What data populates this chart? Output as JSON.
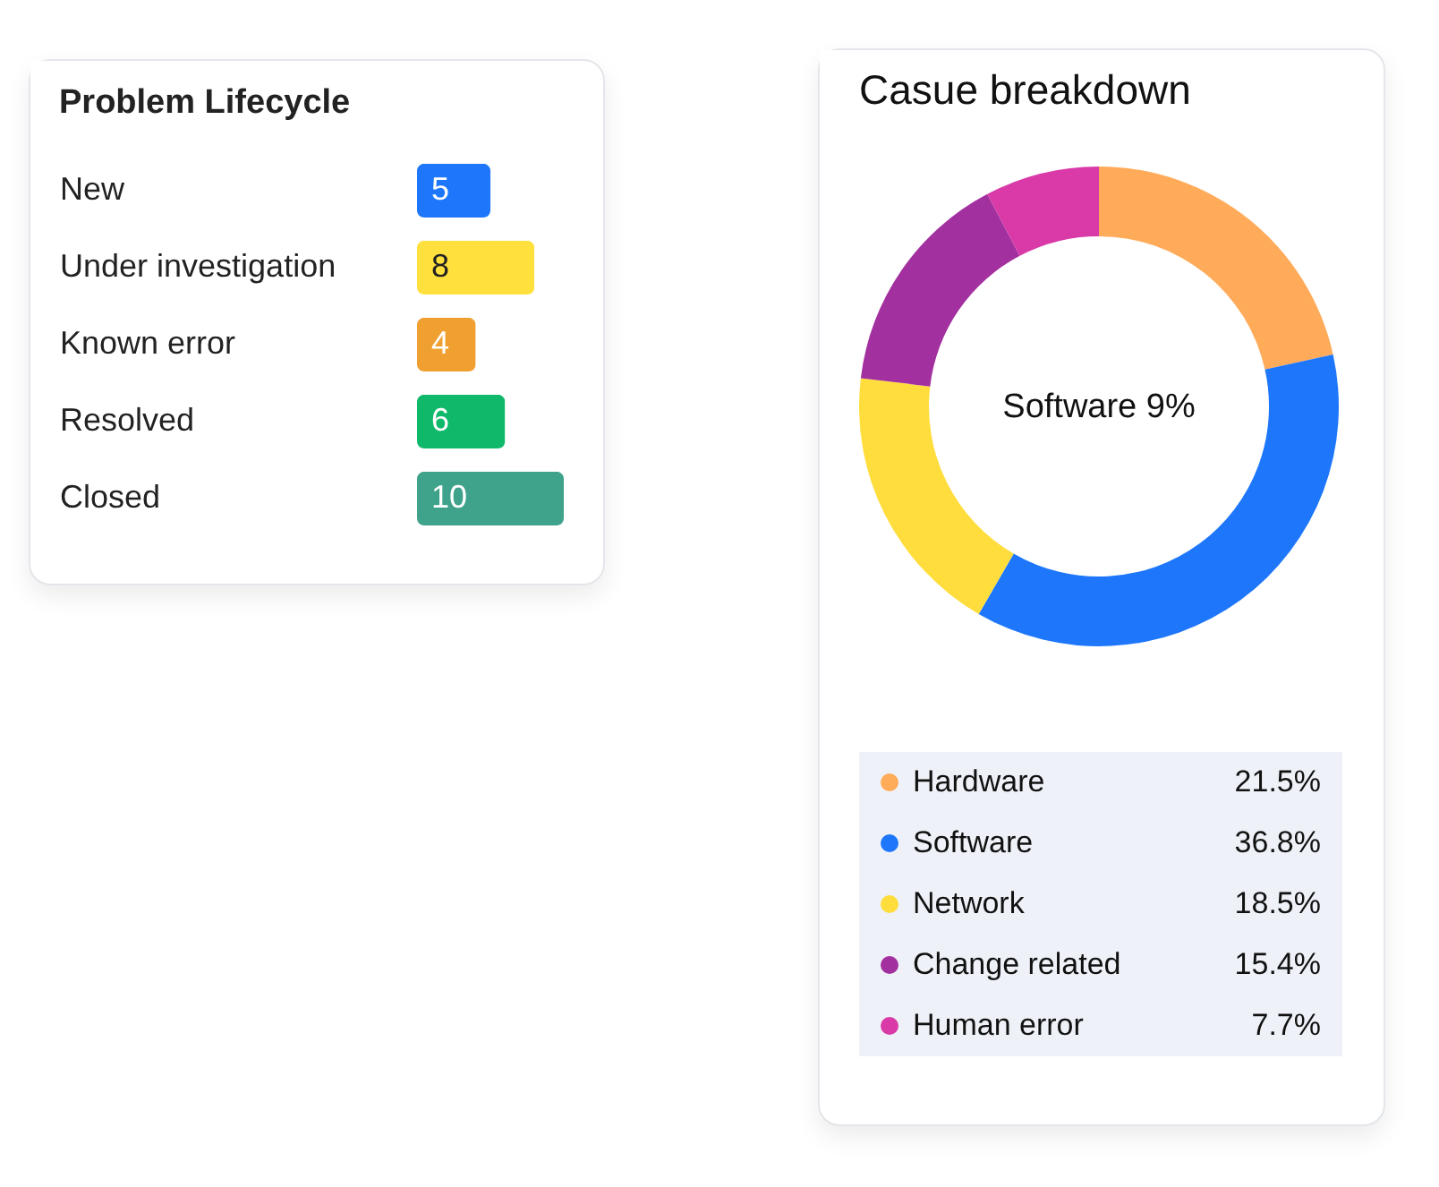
{
  "chart_data": [
    {
      "type": "bar",
      "orientation": "horizontal",
      "title": "Problem Lifecycle",
      "categories": [
        "New",
        "Under investigation",
        "Known error",
        "Resolved",
        "Closed"
      ],
      "values": [
        5,
        8,
        4,
        6,
        10
      ],
      "colors": [
        "#1e77fb",
        "#ffe03c",
        "#f0a030",
        "#10b96a",
        "#3fa38b"
      ],
      "data_labels": true,
      "tick_labels": "y"
    },
    {
      "type": "donut",
      "title": "Casue breakdown",
      "categories": [
        "Hardware",
        "Software",
        "Network",
        "Change related",
        "Human error"
      ],
      "values": [
        21.5,
        36.8,
        18.5,
        15.4,
        7.7
      ],
      "value_labels": [
        "21.5%",
        "36.8%",
        "18.5%",
        "15.4%",
        "7.7%"
      ],
      "colors": [
        "#ffab5a",
        "#1e77fb",
        "#ffdd3c",
        "#a3309f",
        "#d93aa8"
      ],
      "annotations": [
        "Software 9%"
      ],
      "legend": "bottom"
    }
  ]
}
